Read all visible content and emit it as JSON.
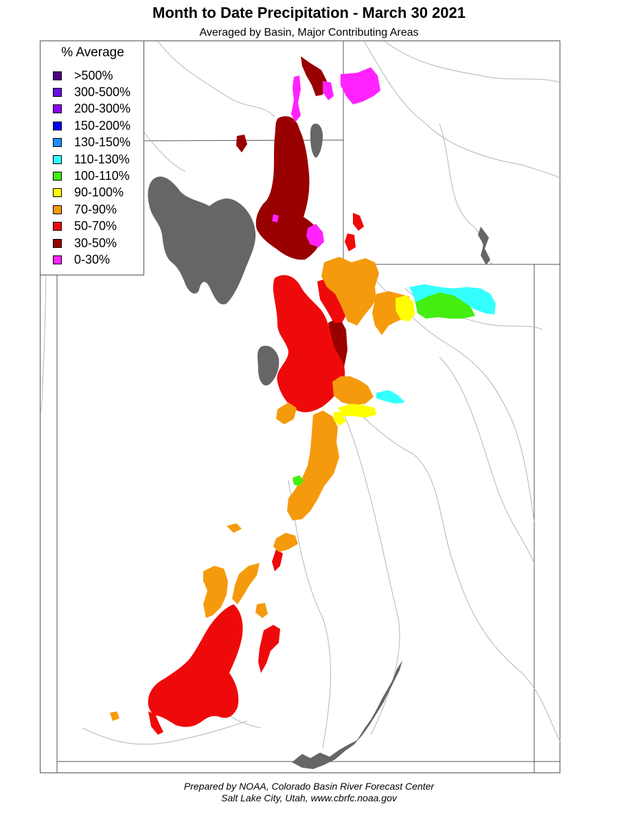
{
  "title": "Month to Date Precipitation - March 30 2021",
  "subtitle": "Averaged by Basin, Major Contributing Areas",
  "legend": {
    "title": "% Average",
    "items": [
      {
        "label": ">500%",
        "color": "#4b0082"
      },
      {
        "label": "300-500%",
        "color": "#6a0fe6"
      },
      {
        "label": "200-300%",
        "color": "#8a00ff"
      },
      {
        "label": "150-200%",
        "color": "#0000ff"
      },
      {
        "label": "130-150%",
        "color": "#1e90ff"
      },
      {
        "label": "110-130%",
        "color": "#33ffff"
      },
      {
        "label": "100-110%",
        "color": "#44ee11"
      },
      {
        "label": "90-100%",
        "color": "#ffff00"
      },
      {
        "label": "70-90%",
        "color": "#f59a0c"
      },
      {
        "label": "50-70%",
        "color": "#ee0a0a"
      },
      {
        "label": "30-50%",
        "color": "#990000"
      },
      {
        "label": "0-30%",
        "color": "#ff22ff"
      }
    ]
  },
  "water_color": "#666666",
  "footer": {
    "line1": "Prepared by NOAA, Colorado Basin River Forecast Center",
    "line2": "Salt Lake City, Utah, www.cbrfc.noaa.gov"
  }
}
